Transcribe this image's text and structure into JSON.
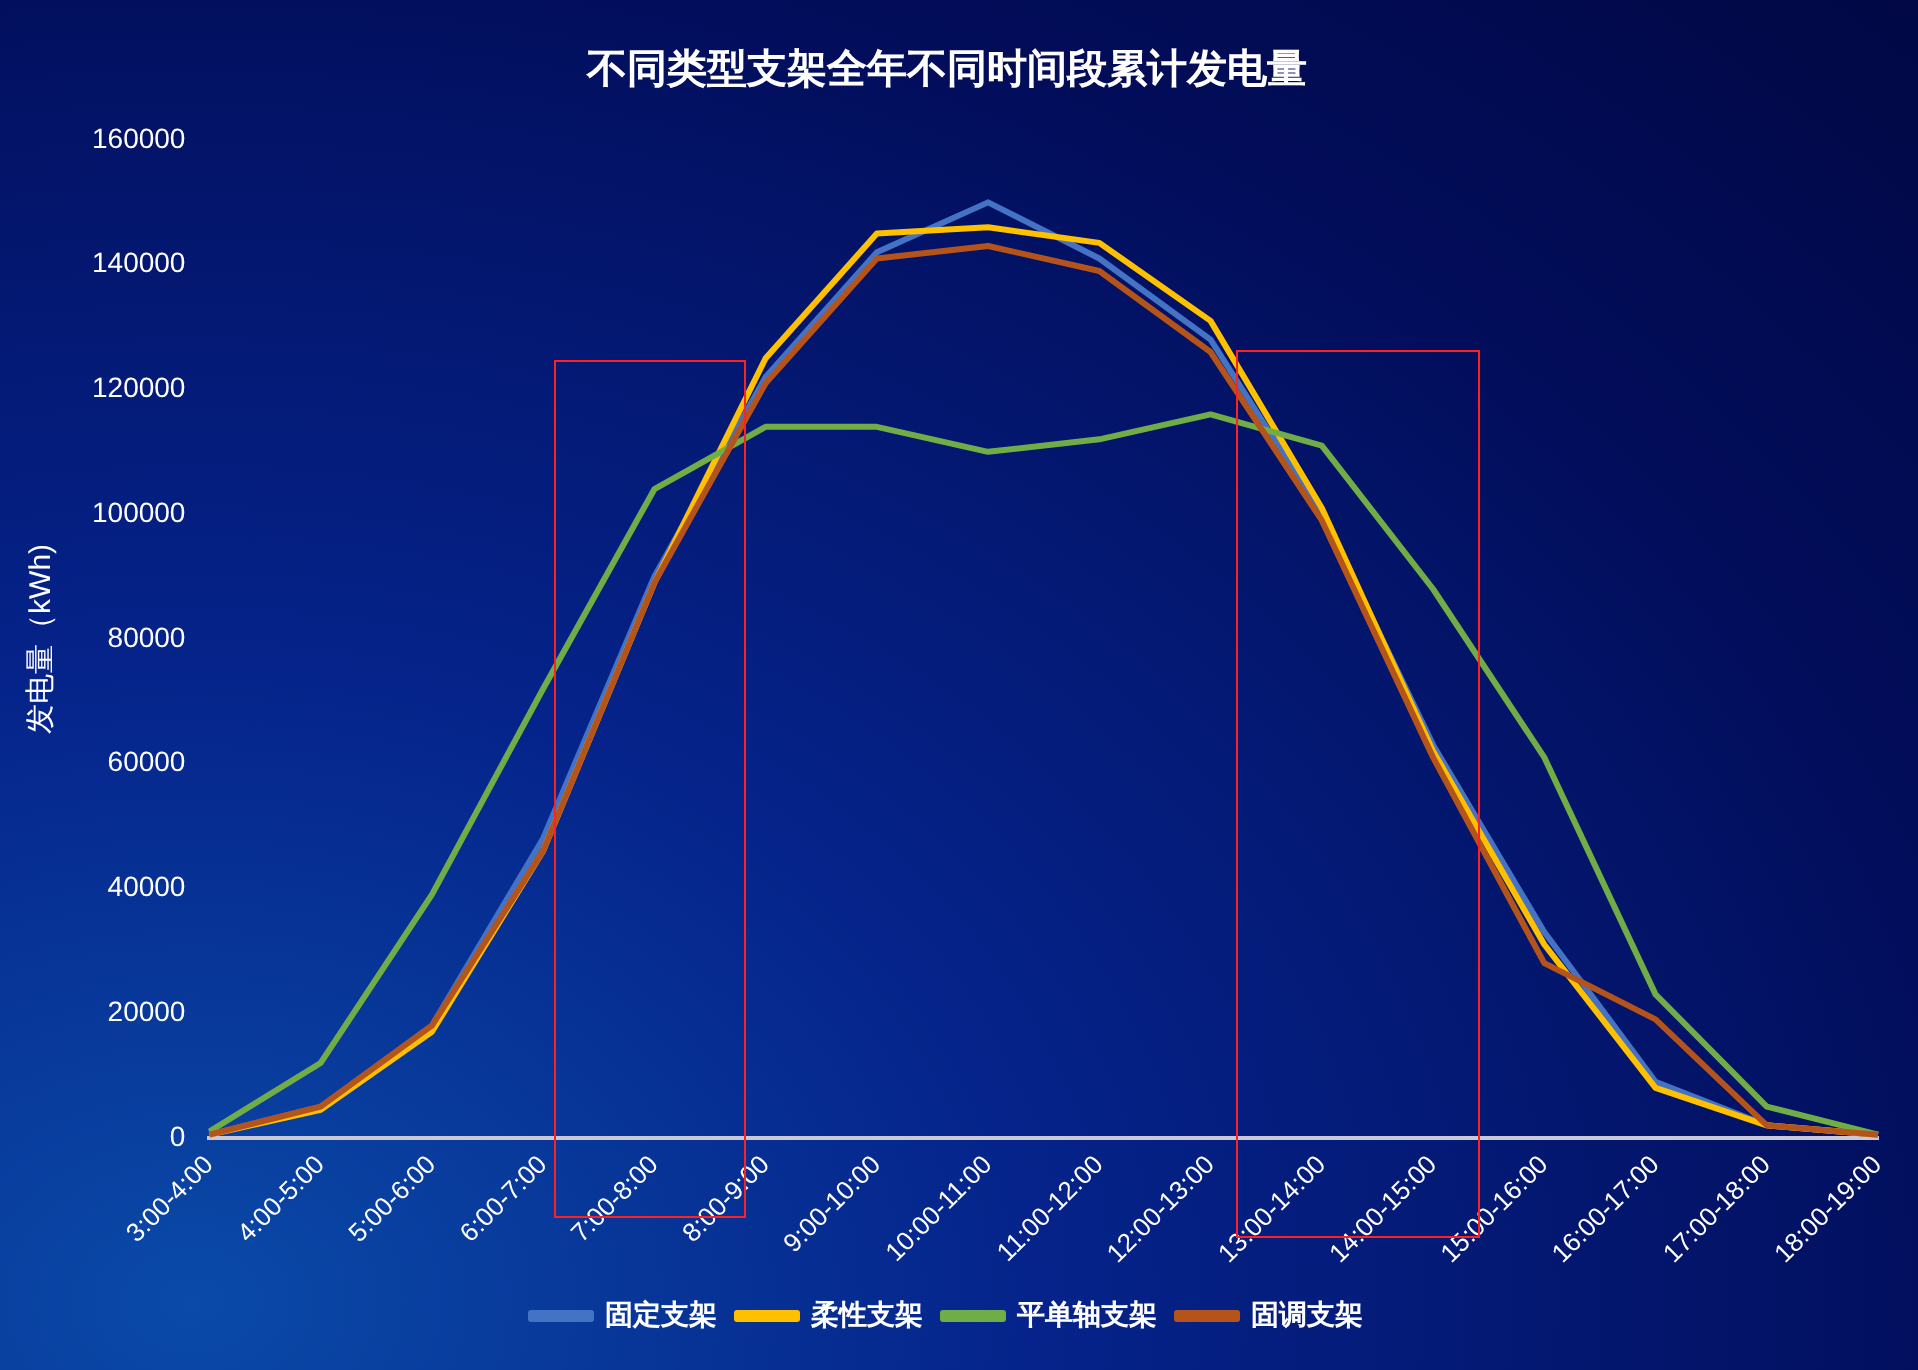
{
  "chart_data": {
    "type": "line",
    "title": "不同类型支架全年不同时间段累计发电量",
    "ylabel": "发电量（kWh)",
    "categories": [
      "3:00-4:00",
      "4:00-5:00",
      "5:00-6:00",
      "6:00-7:00",
      "7:00-8:00",
      "8:00-9:00",
      "9:00-10:00",
      "10:00-11:00",
      "11:00-12:00",
      "12:00-13:00",
      "13:00-14:00",
      "14:00-15:00",
      "15:00-16:00",
      "16:00-17:00",
      "17:00-18:00",
      "18:00-19:00"
    ],
    "series": [
      {
        "name": "固定支架",
        "color": "#4472c4",
        "values": [
          500,
          5000,
          18000,
          48000,
          90000,
          122000,
          142000,
          150000,
          141000,
          128000,
          100000,
          63000,
          33000,
          9000,
          2000,
          500
        ]
      },
      {
        "name": "柔性支架",
        "color": "#ffc000",
        "values": [
          500,
          4500,
          17000,
          46000,
          89000,
          125000,
          145000,
          146000,
          143500,
          131000,
          101000,
          62000,
          31000,
          8000,
          2000,
          500
        ]
      },
      {
        "name": "平单轴支架",
        "color": "#70ad47",
        "values": [
          1000,
          12000,
          39000,
          72000,
          104000,
          114000,
          114000,
          110000,
          112000,
          116000,
          111000,
          88000,
          61000,
          23000,
          5000,
          500
        ]
      },
      {
        "name": "固调支架",
        "color": "#b5541a",
        "values": [
          500,
          5000,
          18000,
          46000,
          89000,
          121000,
          141000,
          143000,
          139000,
          126000,
          99000,
          61000,
          28000,
          19000,
          2000,
          500
        ]
      }
    ],
    "ylim": [
      0,
      160000
    ],
    "yticks": [
      0,
      20000,
      40000,
      60000,
      80000,
      100000,
      120000,
      140000,
      160000
    ],
    "grid": false,
    "legend": "bottom",
    "marker": "none",
    "line_style": "solid"
  }
}
